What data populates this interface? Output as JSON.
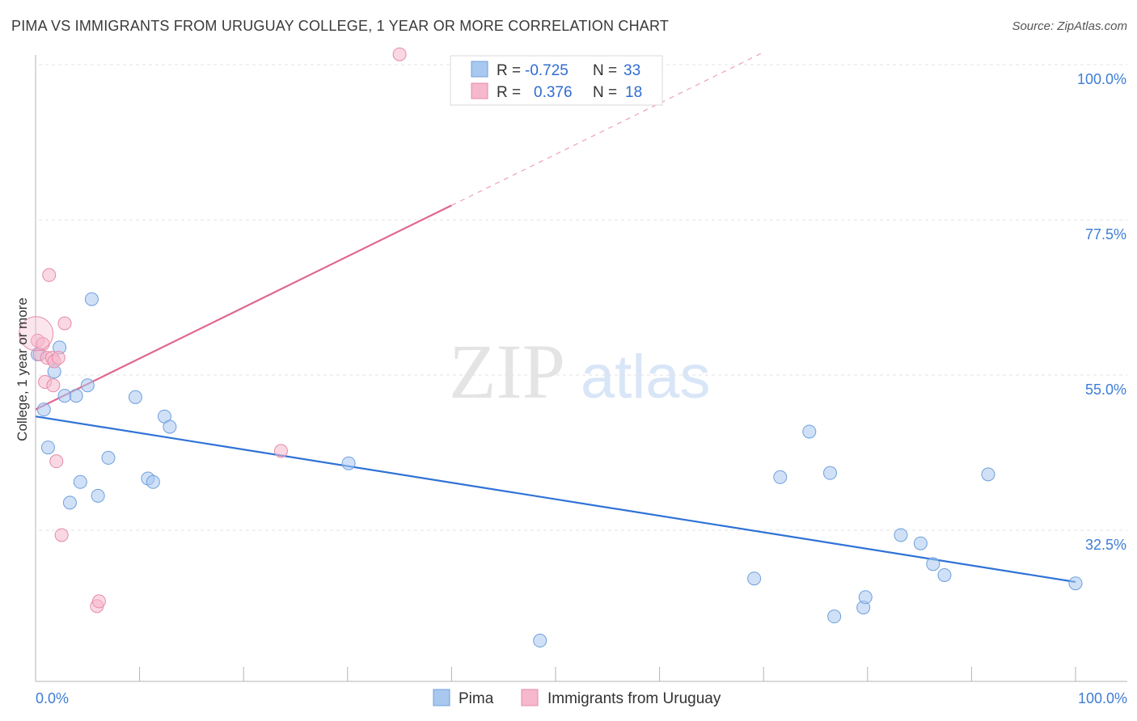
{
  "title": "PIMA VS IMMIGRANTS FROM URUGUAY COLLEGE, 1 YEAR OR MORE CORRELATION CHART",
  "source": "Source: ZipAtlas.com",
  "watermark": {
    "zip": "ZIP",
    "atlas": "atlas"
  },
  "chart_data": {
    "type": "scatter",
    "title": "PIMA VS IMMIGRANTS FROM URUGUAY COLLEGE, 1 YEAR OR MORE CORRELATION CHART",
    "xlabel": "",
    "ylabel": "College, 1 year or more",
    "xlim": [
      0,
      100
    ],
    "ylim": [
      10,
      103
    ],
    "x_tick_labels": [
      "0.0%",
      "100.0%"
    ],
    "y_ticks": [
      {
        "value": 100,
        "label": "100.0%"
      },
      {
        "value": 77.5,
        "label": "77.5%"
      },
      {
        "value": 55,
        "label": "55.0%"
      },
      {
        "value": 32.5,
        "label": "32.5%"
      }
    ],
    "legend": [
      {
        "name": "Pima",
        "r_label": "R =",
        "r": "-0.725",
        "n_label": "N =",
        "n": "33",
        "color": "#a9c8f0",
        "edge": "#6f9fdc"
      },
      {
        "name": "Immigrants from Uruguay",
        "r_label": "R =",
        "r": "0.376",
        "n_label": "N =",
        "n": "18",
        "color": "#f6b8cc",
        "edge": "#e58aa8"
      }
    ],
    "series": [
      {
        "name": "Pima",
        "color": "#a9c8f0",
        "edge": "#6f9fdc",
        "points": [
          [
            0.2,
            58
          ],
          [
            0.8,
            50
          ],
          [
            1.2,
            44.5
          ],
          [
            1.8,
            55.5
          ],
          [
            2.3,
            59
          ],
          [
            2.8,
            52
          ],
          [
            3.3,
            36.5
          ],
          [
            3.9,
            52
          ],
          [
            4.3,
            39.5
          ],
          [
            5.0,
            53.5
          ],
          [
            5.4,
            66
          ],
          [
            6.0,
            37.5
          ],
          [
            7.0,
            43
          ],
          [
            9.6,
            51.8
          ],
          [
            10.8,
            40
          ],
          [
            11.3,
            39.5
          ],
          [
            12.4,
            49
          ],
          [
            12.9,
            47.5
          ],
          [
            30.1,
            42.2
          ],
          [
            48.5,
            16.5
          ],
          [
            69.1,
            25.5
          ],
          [
            71.6,
            40.2
          ],
          [
            74.4,
            46.8
          ],
          [
            76.4,
            40.8
          ],
          [
            76.8,
            20
          ],
          [
            79.6,
            21.3
          ],
          [
            79.8,
            22.8
          ],
          [
            83.2,
            31.8
          ],
          [
            85.1,
            30.6
          ],
          [
            86.3,
            27.6
          ],
          [
            87.4,
            26
          ],
          [
            91.6,
            40.6
          ],
          [
            100,
            24.8
          ]
        ],
        "trend": {
          "x0": 0,
          "y0": 49,
          "x1": 100,
          "y1": 25
        }
      },
      {
        "name": "Immigrants from Uruguay",
        "color": "#f6b8cc",
        "edge": "#e58aa8",
        "points": [
          [
            0.2,
            60
          ],
          [
            0.4,
            58
          ],
          [
            0.7,
            59.5
          ],
          [
            0.9,
            54
          ],
          [
            1.1,
            57.5
          ],
          [
            1.3,
            69.5
          ],
          [
            1.6,
            57.5
          ],
          [
            1.7,
            53.5
          ],
          [
            1.8,
            57
          ],
          [
            2.0,
            42.5
          ],
          [
            2.2,
            57.5
          ],
          [
            2.5,
            31.8
          ],
          [
            2.8,
            62.5
          ],
          [
            5.9,
            21.5
          ],
          [
            6.1,
            22.2
          ],
          [
            23.6,
            44
          ],
          [
            35.0,
            101.5
          ],
          [
            0.05,
            61
          ]
        ],
        "trend": {
          "x0": 0,
          "y0": 50,
          "x1": 70,
          "y1": 101.8,
          "solid_until_x": 40
        }
      }
    ]
  }
}
